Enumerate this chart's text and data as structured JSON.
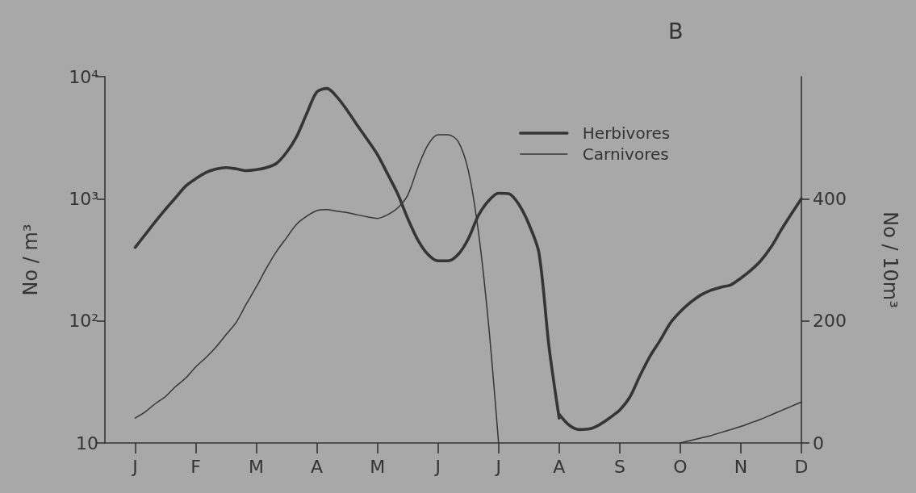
{
  "chart_data": {
    "type": "line",
    "title": "B",
    "ylabel": "No / m³",
    "y2label": "No / 10m³",
    "categories": [
      null,
      null,
      null,
      "J",
      null,
      null,
      null,
      null,
      null,
      "F",
      null,
      null,
      null,
      null,
      null,
      "M",
      null,
      null,
      null,
      null,
      null,
      "A",
      null,
      null,
      null,
      null,
      null,
      "M",
      null,
      null,
      null,
      null,
      null,
      "J",
      null,
      null,
      null,
      null,
      null,
      "J",
      null,
      null,
      null,
      null,
      null,
      "A",
      null,
      null,
      null,
      null,
      null,
      "S",
      null,
      null,
      null,
      null,
      null,
      "O",
      null,
      null,
      null,
      null,
      null,
      "N",
      null,
      null,
      null,
      null,
      null,
      "D"
    ],
    "ylim": [
      10,
      10000
    ],
    "yticks": [
      10,
      {
        "value": 100,
        "label": "10²"
      },
      {
        "value": 1000,
        "label": "10³"
      },
      {
        "value": 10000,
        "label": "10⁴"
      }
    ],
    "y2lim": [
      0,
      600
    ],
    "y2ticks": [
      0,
      200,
      400
    ],
    "log": "y",
    "legend": "top right",
    "series": [
      {
        "name": "Herbivores",
        "color": "#353535",
        "values": [
          null,
          null,
          null,
          400,
          510,
          650,
          820,
          1020,
          1270,
          1460,
          1640,
          1750,
          1800,
          1760,
          1700,
          1730,
          1800,
          1950,
          2400,
          3240,
          5000,
          7500,
          8000,
          6800,
          5300,
          4000,
          3050,
          2300,
          1600,
          1100,
          690,
          460,
          350,
          310,
          310,
          350,
          470,
          730,
          960,
          1110,
          1100,
          900,
          620,
          360,
          61,
          16,
          null,
          null,
          null,
          null,
          null,
          null,
          null,
          null,
          null,
          null,
          null,
          null,
          null,
          null,
          null,
          null,
          null,
          null,
          null,
          null,
          null,
          null,
          null,
          null
        ]
      },
      {
        "name": "Carnivores",
        "color": "#353535",
        "values": [
          null,
          null,
          null,
          16,
          18,
          21,
          24,
          29,
          34,
          42,
          50,
          61,
          77,
          97,
          137,
          190,
          270,
          370,
          480,
          620,
          720,
          800,
          815,
          790,
          770,
          740,
          710,
          690,
          740,
          840,
          1070,
          1800,
          2760,
          3350,
          3350,
          2940,
          1700,
          540,
          95,
          10,
          null,
          null,
          null,
          null,
          null,
          null,
          null,
          null,
          null,
          null,
          null,
          null,
          null,
          null,
          null,
          null,
          null,
          null,
          null,
          null,
          null,
          null,
          null,
          null,
          null,
          null,
          null,
          null,
          null,
          null
        ]
      },
      {
        "color": "#353535",
        "axis": "y2",
        "values": [
          null,
          null,
          null,
          null,
          null,
          null,
          null,
          null,
          null,
          null,
          null,
          null,
          null,
          null,
          null,
          null,
          null,
          null,
          null,
          null,
          null,
          null,
          null,
          null,
          null,
          null,
          null,
          null,
          null,
          null,
          null,
          null,
          null,
          null,
          null,
          null,
          null,
          null,
          null,
          null,
          null,
          null,
          null,
          null,
          null,
          47,
          29,
          22,
          23,
          30,
          41,
          54,
          75,
          110,
          142,
          168,
          196,
          215,
          230,
          242,
          250,
          255,
          259,
          270,
          283,
          299,
          321,
          349,
          375,
          400
        ]
      },
      {
        "color": "#353535",
        "axis": "y2",
        "values": [
          null,
          null,
          null,
          null,
          null,
          null,
          null,
          null,
          null,
          null,
          null,
          null,
          null,
          null,
          null,
          null,
          null,
          null,
          null,
          null,
          null,
          null,
          null,
          null,
          null,
          null,
          null,
          null,
          null,
          null,
          null,
          null,
          null,
          null,
          null,
          null,
          null,
          null,
          null,
          null,
          null,
          null,
          null,
          null,
          null,
          null,
          null,
          null,
          null,
          null,
          null,
          null,
          null,
          null,
          null,
          null,
          null,
          0,
          4,
          8,
          12,
          17,
          22,
          27,
          33,
          39,
          46,
          53,
          60,
          67
        ]
      }
    ]
  }
}
